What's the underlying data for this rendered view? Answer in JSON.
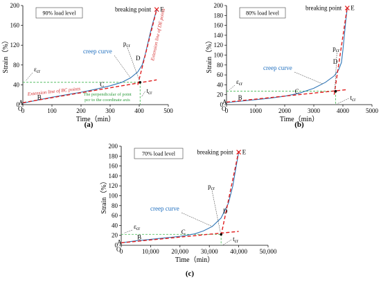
{
  "colors": {
    "creep": "#2e75b6",
    "fit": "#e01b1b",
    "guide": "#3cb44b",
    "axis": "#000000"
  },
  "chart_data": [
    {
      "panel": "a",
      "caption": "(a)",
      "type": "line",
      "load_label": "90% load level",
      "xlabel": "Time（min）",
      "ylabel": "Strain（%）",
      "xlim": [
        0,
        500
      ],
      "ylim": [
        0,
        200
      ],
      "xticks": [
        0,
        100,
        200,
        300,
        400,
        500
      ],
      "yticks": [
        0,
        40,
        80,
        120,
        160,
        200
      ],
      "xtick_labels": [
        "0",
        "100",
        "200",
        "300",
        "400",
        "500"
      ],
      "ytick_labels": [
        "0",
        "40",
        "80",
        "120",
        "160",
        "200"
      ],
      "creep_curve": {
        "name": "creep curve",
        "x": [
          0,
          50,
          100,
          150,
          200,
          250,
          300,
          340,
          370,
          395,
          410,
          420,
          430,
          440,
          450,
          460
        ],
        "y": [
          3,
          9,
          15,
          20,
          25,
          31,
          38,
          45,
          54,
          66,
          80,
          100,
          125,
          150,
          172,
          192
        ]
      },
      "fit_bc": {
        "x": [
          0,
          460
        ],
        "y": [
          4,
          50
        ]
      },
      "fit_de": {
        "x": [
          395,
          460
        ],
        "y": [
          40,
          192
        ]
      },
      "pcr_point": {
        "x": 403,
        "y": 45
      },
      "eps_line_y": 45,
      "tcr_x": 403,
      "points": [
        {
          "name": "A",
          "x": 0,
          "y": 3
        },
        {
          "name": "B",
          "x": 40,
          "y": 8
        },
        {
          "name": "C",
          "x": 260,
          "y": 32
        },
        {
          "name": "D",
          "x": 412,
          "y": 85
        },
        {
          "name": "E",
          "x": 460,
          "y": 192
        }
      ],
      "labels": {
        "eps": "εcr",
        "pcr": "pcr",
        "tcr": "tcr",
        "breaking": "breaking point",
        "bc_ext": "Extension line of BC points",
        "de_ext": "Extension line of DE points",
        "perp_1": "The perpendicular of point",
        "perp_2": "pcr to the coordinate axis"
      }
    },
    {
      "panel": "b",
      "caption": "(b)",
      "type": "line",
      "load_label": "80% load level",
      "xlabel": "Time（min）",
      "ylabel": "Strain（%）",
      "xlim": [
        0,
        5000
      ],
      "ylim": [
        0,
        200
      ],
      "xticks": [
        0,
        1000,
        2000,
        3000,
        4000,
        5000
      ],
      "yticks": [
        0,
        20,
        40,
        60,
        80,
        100,
        120,
        140,
        160,
        180,
        200
      ],
      "xtick_labels": [
        "0",
        "1000",
        "2000",
        "3000",
        "4000",
        "5000"
      ],
      "ytick_labels": [
        "0",
        "20",
        "40",
        "60",
        "80",
        "100",
        "120",
        "140",
        "160",
        "180",
        "200"
      ],
      "creep_curve": {
        "name": "creep curve",
        "x": [
          0,
          500,
          1000,
          1500,
          2000,
          2500,
          3000,
          3400,
          3700,
          3850,
          3950,
          4000,
          4050,
          4100,
          4150
        ],
        "y": [
          4,
          7,
          10,
          13,
          17,
          23,
          33,
          45,
          58,
          70,
          85,
          110,
          140,
          170,
          195
        ]
      },
      "fit_bc": {
        "x": [
          0,
          4100
        ],
        "y": [
          5,
          30
        ]
      },
      "fit_de": {
        "x": [
          3700,
          4150
        ],
        "y": [
          20,
          197
        ]
      },
      "pcr_point": {
        "x": 3750,
        "y": 27
      },
      "eps_line_y": 27,
      "tcr_x": 3750,
      "points": [
        {
          "name": "A",
          "x": 0,
          "y": 4
        },
        {
          "name": "B",
          "x": 300,
          "y": 7
        },
        {
          "name": "C",
          "x": 2300,
          "y": 18
        },
        {
          "name": "D",
          "x": 3900,
          "y": 78
        },
        {
          "name": "E",
          "x": 4150,
          "y": 195
        }
      ],
      "labels": {
        "eps": "εcr",
        "pcr": "pcr",
        "tcr": "tcr",
        "breaking": "breaking point"
      }
    },
    {
      "panel": "c",
      "caption": "(c)",
      "type": "line",
      "load_label": "70% load level",
      "xlabel": "Time（min）",
      "ylabel": "Strain（%）",
      "xlim": [
        0,
        50000
      ],
      "ylim": [
        0,
        200
      ],
      "xticks": [
        0,
        10000,
        20000,
        30000,
        40000,
        50000
      ],
      "yticks": [
        0,
        20,
        40,
        60,
        80,
        100,
        120,
        140,
        160,
        180,
        200
      ],
      "xtick_labels": [
        "0",
        "10,000",
        "20,000",
        "30,000",
        "40,000",
        "50,000"
      ],
      "ytick_labels": [
        "0",
        "20",
        "40",
        "60",
        "80",
        "100",
        "120",
        "140",
        "160",
        "180",
        "200"
      ],
      "creep_curve": {
        "name": "creep curve",
        "x": [
          0,
          5000,
          10000,
          15000,
          20000,
          25000,
          28000,
          31000,
          34000,
          36500,
          38000,
          39000,
          40000
        ],
        "y": [
          5,
          9,
          12,
          15,
          18,
          23,
          29,
          38,
          55,
          85,
          120,
          155,
          188
        ]
      },
      "fit_bc": {
        "x": [
          0,
          40000
        ],
        "y": [
          5,
          28
        ]
      },
      "fit_de": {
        "x": [
          34000,
          40000
        ],
        "y": [
          20,
          190
        ]
      },
      "pcr_point": {
        "x": 34000,
        "y": 22
      },
      "eps_line_y": 22,
      "tcr_x": 34000,
      "points": [
        {
          "name": "A",
          "x": 0,
          "y": 5
        },
        {
          "name": "B",
          "x": 4500,
          "y": 9
        },
        {
          "name": "C",
          "x": 20000,
          "y": 18
        },
        {
          "name": "D",
          "x": 37000,
          "y": 60
        },
        {
          "name": "E",
          "x": 40000,
          "y": 188
        }
      ],
      "labels": {
        "eps": "εcr",
        "pcr": "pcr",
        "tcr": "tcr",
        "breaking": "breaking point"
      }
    }
  ]
}
